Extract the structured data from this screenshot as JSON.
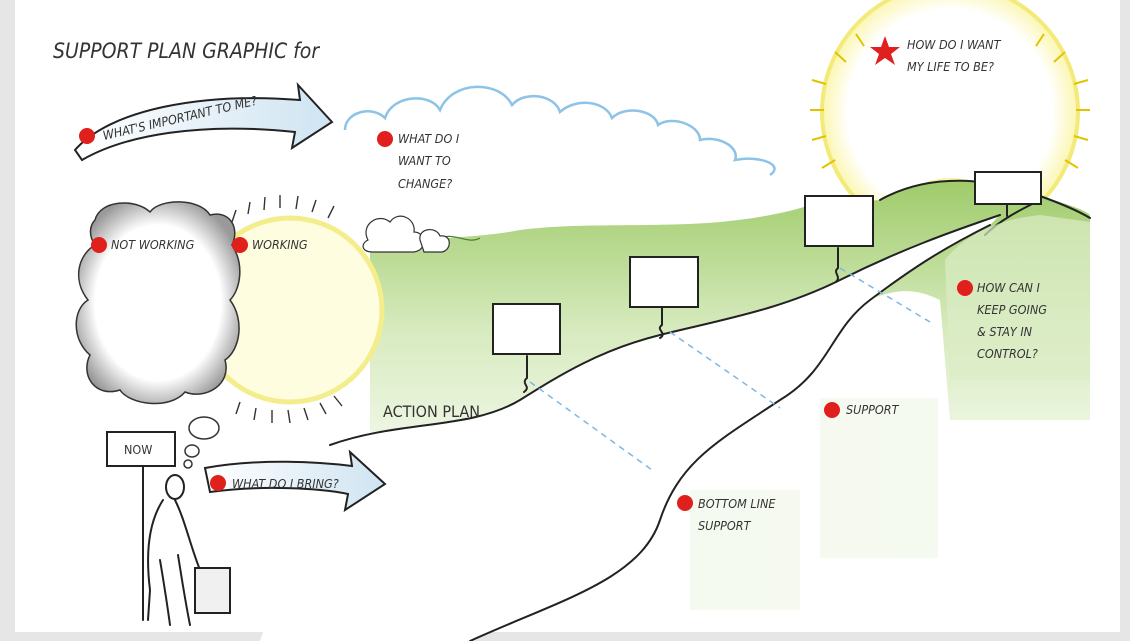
{
  "header": {
    "title": "SUPPORT PLAN GRAPHIC for"
  },
  "labels": {
    "important": {
      "lines": [
        "WHAT'S IMPORTANT TO ME?"
      ]
    },
    "change": {
      "lines": [
        "WHAT DO I",
        "WANT TO",
        "CHANGE?"
      ]
    },
    "life": {
      "lines": [
        "HOW DO I WANT",
        "MY LIFE TO BE?"
      ]
    },
    "not_working": {
      "lines": [
        "NOT WORKING"
      ]
    },
    "working": {
      "lines": [
        "WORKING"
      ]
    },
    "keep_going": {
      "lines": [
        "HOW CAN I",
        "KEEP GOING",
        "& STAY IN",
        "CONTROL?"
      ]
    },
    "action_plan": {
      "lines": [
        "ACTION PLAN"
      ]
    },
    "support": {
      "lines": [
        "SUPPORT"
      ]
    },
    "now": {
      "lines": [
        "NOW"
      ]
    },
    "bring": {
      "lines": [
        "WHAT DO I BRING?"
      ]
    },
    "bottom_line": {
      "lines": [
        "BOTTOM LINE",
        "SUPPORT"
      ]
    }
  }
}
